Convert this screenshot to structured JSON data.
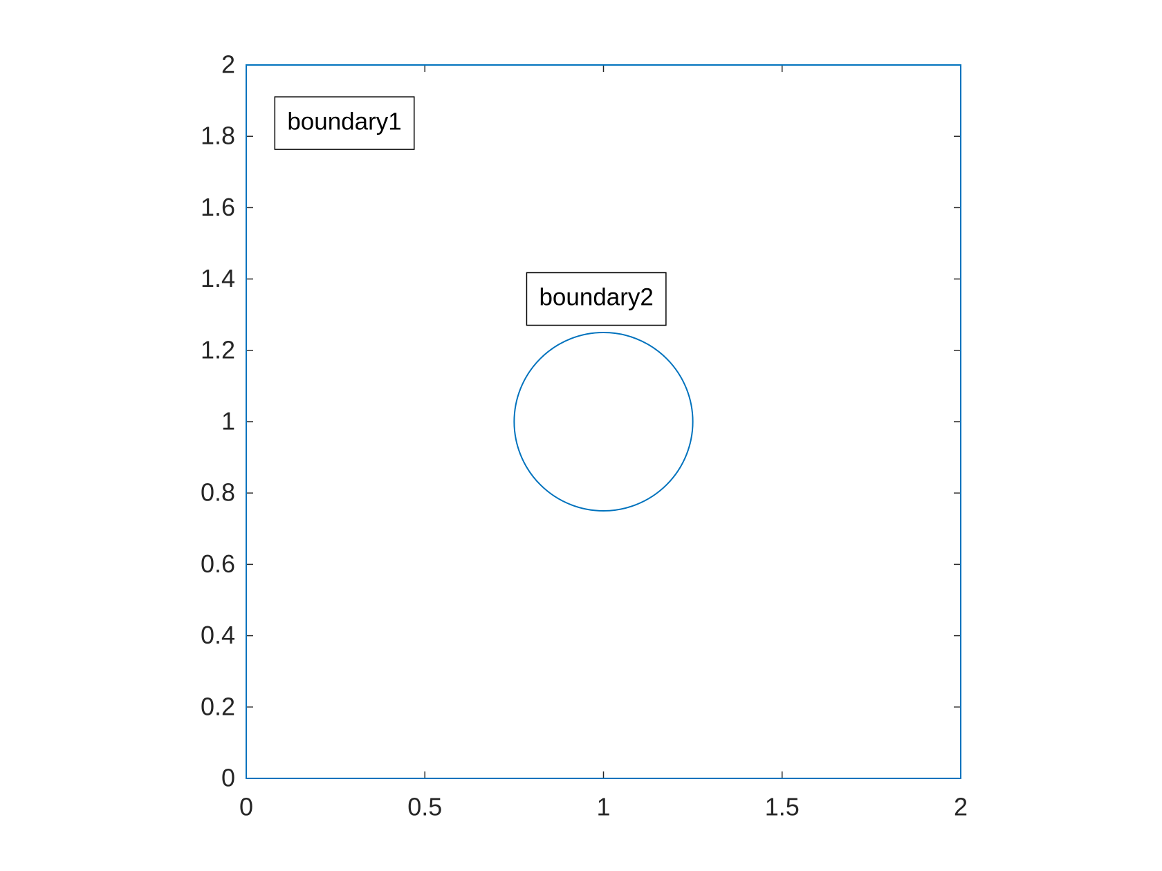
{
  "chart_data": {
    "type": "geometry",
    "shapes": [
      {
        "kind": "rectangle",
        "x": [
          0,
          2
        ],
        "y": [
          0,
          2
        ],
        "color": "#0072bd"
      },
      {
        "kind": "circle",
        "center": [
          1,
          1
        ],
        "radius": 0.25,
        "color": "#0072bd"
      }
    ],
    "annotations": [
      {
        "text": "boundary1",
        "x": 0.275,
        "y": 1.837
      },
      {
        "text": "boundary2",
        "x": 0.98,
        "y": 1.344
      }
    ],
    "xlim": [
      0,
      2
    ],
    "ylim": [
      0,
      2
    ],
    "xticks": [
      0,
      0.5,
      1,
      1.5,
      2
    ],
    "yticks": [
      0,
      0.2,
      0.4,
      0.6,
      0.8,
      1,
      1.2,
      1.4,
      1.6,
      1.8,
      2
    ]
  }
}
